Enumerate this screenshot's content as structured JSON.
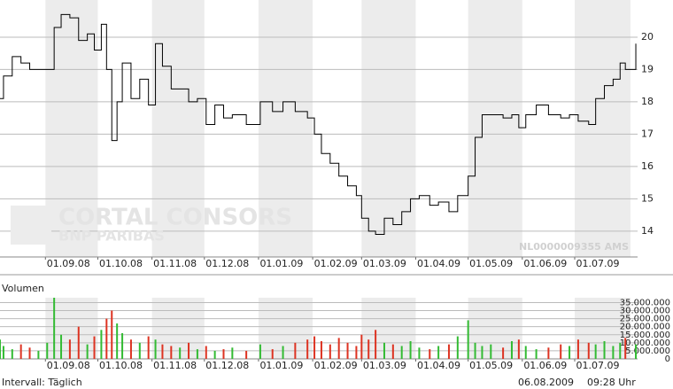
{
  "chart_data": [
    {
      "type": "line",
      "step": true,
      "color": "#000000",
      "xlim": [
        "06.08.08",
        "06.08.09"
      ],
      "ylim": [
        13.2,
        21.15
      ],
      "xticks": [
        "01.09.08",
        "01.10.08",
        "01.11.08",
        "01.12.08",
        "01.01.09",
        "01.02.09",
        "01.03.09",
        "01.04.09",
        "01.05.09",
        "01.06.09",
        "01.07.09"
      ],
      "yticks": [
        14,
        15,
        16,
        17,
        18,
        19,
        20
      ],
      "grid": true,
      "shaded_months": true,
      "x": [
        "06.08.08",
        "08.08.08",
        "13.08.08",
        "18.08.08",
        "23.08.08",
        "28.08.08",
        "02.09.08",
        "06.09.08",
        "10.09.08",
        "15.09.08",
        "20.09.08",
        "25.09.08",
        "29.09.08",
        "03.10.08",
        "06.10.08",
        "09.10.08",
        "12.10.08",
        "15.10.08",
        "20.10.08",
        "25.10.08",
        "30.10.08",
        "03.11.08",
        "07.11.08",
        "12.11.08",
        "17.11.08",
        "22.11.08",
        "27.11.08",
        "02.12.08",
        "07.12.08",
        "12.12.08",
        "17.12.08",
        "25.12.08",
        "02.01.09",
        "09.01.09",
        "15.01.09",
        "22.01.09",
        "29.01.09",
        "02.02.09",
        "06.02.09",
        "11.02.09",
        "16.02.09",
        "21.02.09",
        "26.02.09",
        "01.03.09",
        "05.03.09",
        "09.03.09",
        "14.03.09",
        "19.03.09",
        "24.03.09",
        "29.03.09",
        "03.04.09",
        "09.04.09",
        "14.04.09",
        "20.04.09",
        "25.04.09",
        "01.05.09",
        "05.05.09",
        "09.05.09",
        "14.05.09",
        "21.05.09",
        "26.05.09",
        "30.05.09",
        "03.06.09",
        "09.06.09",
        "16.06.09",
        "23.06.09",
        "28.06.09",
        "03.07.09",
        "09.07.09",
        "13.07.09",
        "18.07.09",
        "23.07.09",
        "27.07.09",
        "30.07.09",
        "05.08.09"
      ],
      "values": [
        18.1,
        18.8,
        19.4,
        19.2,
        19.0,
        19.0,
        19.0,
        20.3,
        20.7,
        20.6,
        19.9,
        20.1,
        19.6,
        20.4,
        19.0,
        16.8,
        18.0,
        19.2,
        18.1,
        18.7,
        17.9,
        19.8,
        19.1,
        18.4,
        18.4,
        18.0,
        18.1,
        17.3,
        17.9,
        17.5,
        17.6,
        17.3,
        18.0,
        17.7,
        18.0,
        17.7,
        17.5,
        17.0,
        16.4,
        16.1,
        15.7,
        15.4,
        15.1,
        14.4,
        14.0,
        13.9,
        14.4,
        14.2,
        14.6,
        15.0,
        15.1,
        14.8,
        14.9,
        14.6,
        15.1,
        15.7,
        16.9,
        17.6,
        17.6,
        17.5,
        17.6,
        17.2,
        17.6,
        17.9,
        17.6,
        17.5,
        17.6,
        17.4,
        17.3,
        18.1,
        18.5,
        18.7,
        19.2,
        19.0,
        19.8
      ],
      "annotation": "NL0000009355 AMS"
    },
    {
      "type": "bar",
      "title": "Volumen",
      "up_color": "#33bb33",
      "down_color": "#dd3322",
      "xlim": [
        "06.08.08",
        "06.08.09"
      ],
      "ylim": [
        0,
        38000000
      ],
      "xticks": [
        "01.09.08",
        "01.10.08",
        "01.11.08",
        "01.12.08",
        "01.01.09",
        "01.02.09",
        "01.03.09",
        "01.04.09",
        "01.05.09",
        "01.06.09",
        "01.07.09"
      ],
      "yticks": [
        0,
        {
          "value": 5000000,
          "label": "5.000.000"
        },
        {
          "value": 10000000,
          "label": "10.000.000"
        },
        {
          "value": 15000000,
          "label": "15.000.000"
        },
        {
          "value": 20000000,
          "label": "20.000.000"
        },
        {
          "value": 25000000,
          "label": "25.000.000"
        },
        {
          "value": 30000000,
          "label": "30.000.000"
        },
        {
          "value": 35000000,
          "label": "35.000.000"
        }
      ],
      "grid": true,
      "shaded_months": true,
      "x": [
        "06.08.08",
        "08.08.08",
        "13.08.08",
        "18.08.08",
        "23.08.08",
        "28.08.08",
        "02.09.08",
        "06.09.08",
        "10.09.08",
        "15.09.08",
        "20.09.08",
        "25.09.08",
        "29.09.08",
        "03.10.08",
        "06.10.08",
        "09.10.08",
        "12.10.08",
        "15.10.08",
        "20.10.08",
        "25.10.08",
        "30.10.08",
        "03.11.08",
        "07.11.08",
        "12.11.08",
        "17.11.08",
        "22.11.08",
        "27.11.08",
        "02.12.08",
        "07.12.08",
        "12.12.08",
        "17.12.08",
        "25.12.08",
        "02.01.09",
        "09.01.09",
        "15.01.09",
        "22.01.09",
        "29.01.09",
        "02.02.09",
        "06.02.09",
        "11.02.09",
        "16.02.09",
        "21.02.09",
        "26.02.09",
        "01.03.09",
        "05.03.09",
        "09.03.09",
        "14.03.09",
        "19.03.09",
        "24.03.09",
        "29.03.09",
        "03.04.09",
        "09.04.09",
        "14.04.09",
        "20.04.09",
        "25.04.09",
        "01.05.09",
        "05.05.09",
        "09.05.09",
        "14.05.09",
        "21.05.09",
        "26.05.09",
        "30.05.09",
        "03.06.09",
        "09.06.09",
        "16.06.09",
        "23.06.09",
        "28.06.09",
        "03.07.09",
        "09.07.09",
        "13.07.09",
        "18.07.09",
        "23.07.09",
        "27.07.09",
        "30.07.09",
        "05.08.09"
      ],
      "values": [
        12000000,
        8000000,
        6000000,
        9000000,
        7000000,
        5000000,
        10000000,
        38000000,
        15000000,
        12000000,
        20000000,
        9000000,
        14000000,
        18000000,
        25000000,
        30000000,
        22000000,
        16000000,
        12000000,
        10000000,
        14000000,
        12000000,
        9000000,
        8000000,
        7000000,
        10000000,
        6000000,
        8000000,
        5000000,
        6000000,
        7000000,
        5000000,
        9000000,
        6000000,
        8000000,
        10000000,
        12000000,
        14000000,
        11000000,
        9000000,
        13000000,
        10000000,
        8000000,
        15000000,
        12000000,
        18000000,
        10000000,
        9000000,
        8000000,
        11000000,
        7000000,
        6000000,
        8000000,
        9000000,
        14000000,
        24000000,
        10000000,
        8000000,
        9000000,
        7000000,
        11000000,
        12000000,
        8000000,
        6000000,
        7000000,
        9000000,
        8000000,
        12000000,
        10000000,
        9000000,
        11000000,
        8000000,
        10000000,
        13000000,
        9000000
      ]
    }
  ],
  "watermark": {
    "brand": "CORTAL CONSORS",
    "group": "BNP PARIBAS"
  },
  "footer": {
    "interval": "Intervall: Täglich",
    "date": "06.08.2009",
    "time": "09:28 Uhr"
  }
}
